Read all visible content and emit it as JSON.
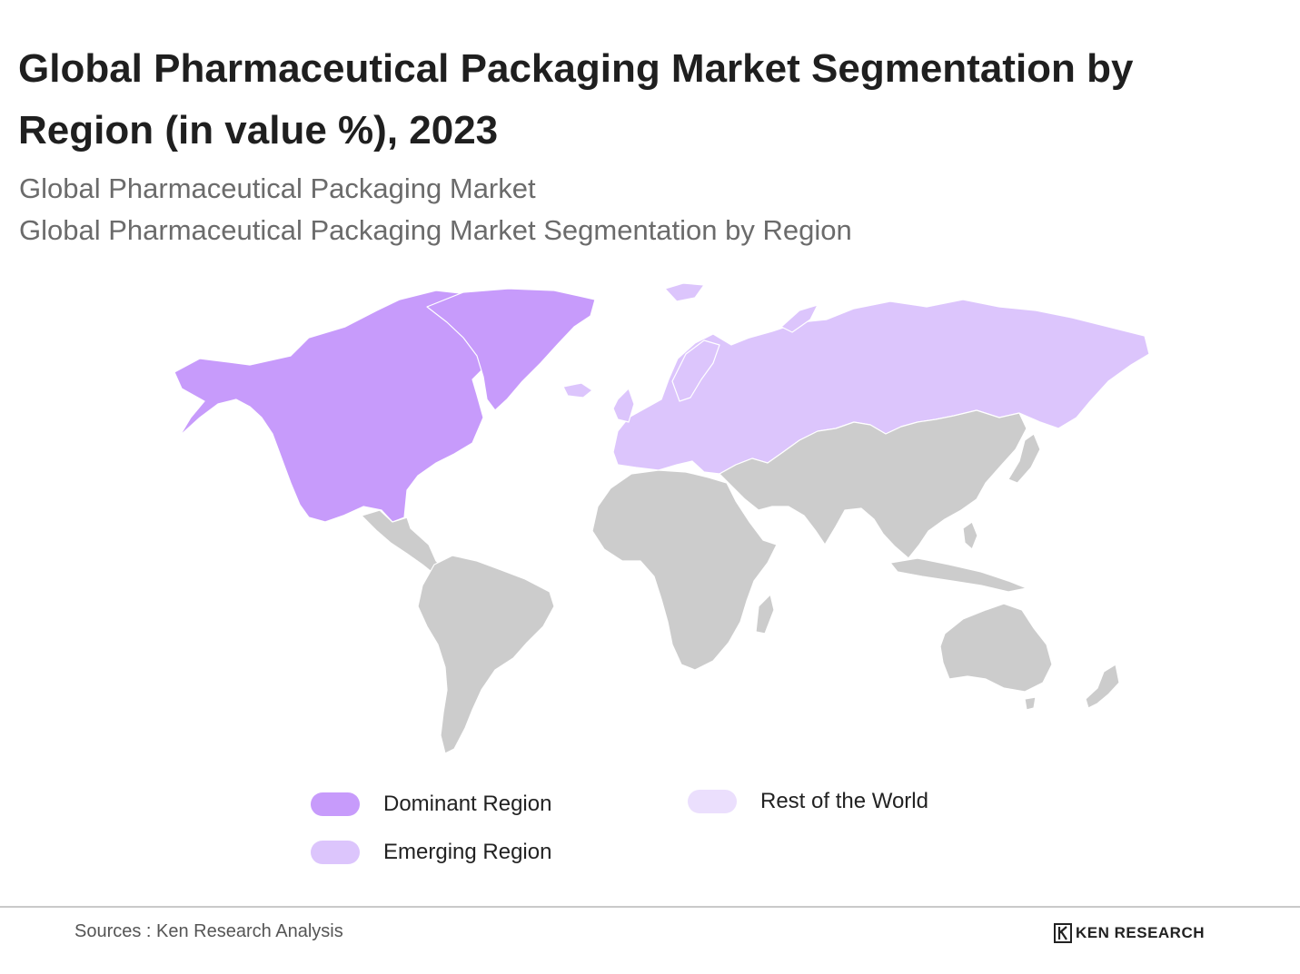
{
  "title": "Global Pharmaceutical Packaging Market Segmentation by Region (in value %), 2023",
  "subtitle_1": "Global Pharmaceutical Packaging Market",
  "subtitle_2": "Global Pharmaceutical Packaging Market Segmentation by Region",
  "colors": {
    "dominant": "#c79bfb",
    "emerging": "#dcc5fc",
    "rest_of_world": "#ebdffd",
    "unclassified_land": "#cccccc",
    "borders": "#ffffff"
  },
  "map": {
    "regions": [
      {
        "name": "North America",
        "category": "dominant"
      },
      {
        "name": "Europe & Russia",
        "category": "emerging"
      },
      {
        "name": "Latin America, Africa, Asia-Pacific",
        "category": "unclassified"
      }
    ]
  },
  "legend": {
    "dominant": "Dominant Region",
    "emerging": "Emerging Region",
    "rest": "Rest of the World"
  },
  "footer": {
    "sources": "Sources : Ken Research Analysis",
    "brand": "KEN RESEARCH",
    "brand_icon": "ken-research-logo-icon"
  }
}
